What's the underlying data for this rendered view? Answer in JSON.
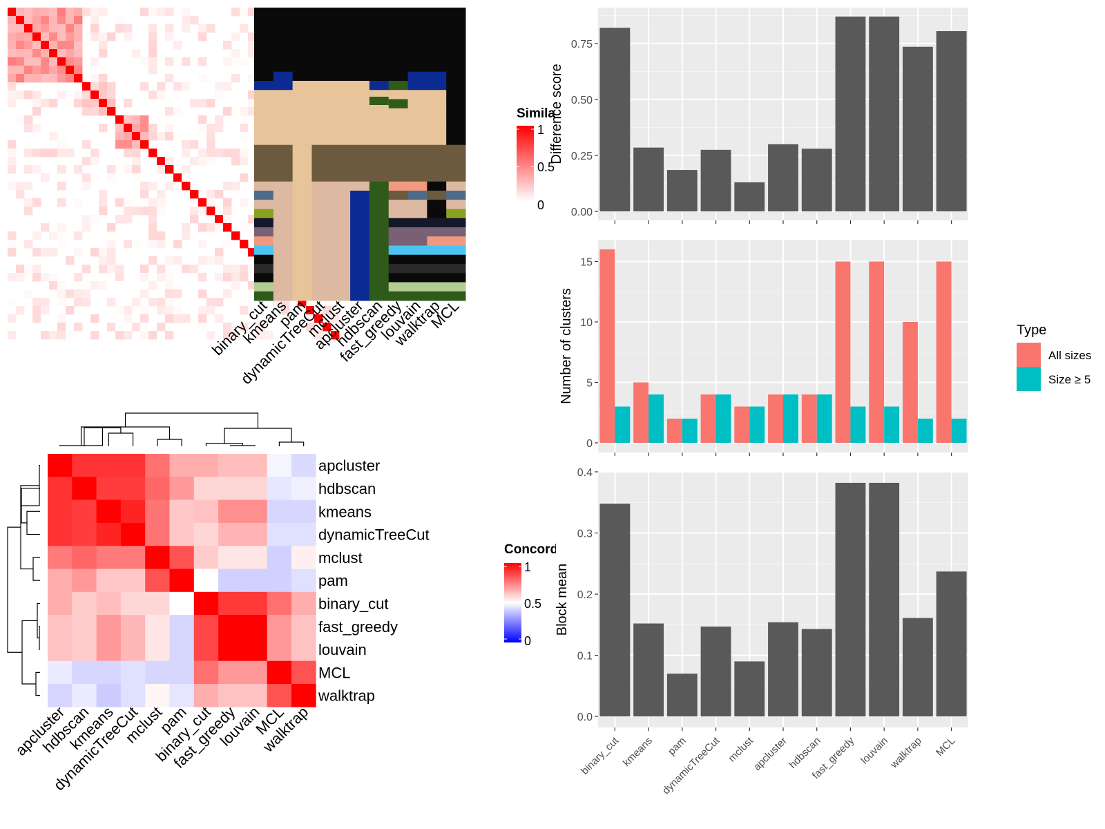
{
  "chart_data": [
    {
      "type": "heatmap",
      "panel": "similarity-matrix",
      "size": 40,
      "blocks": [
        {
          "from": 0,
          "to": 8,
          "value": 0.45
        },
        {
          "from": 9,
          "to": 12,
          "value": 0.25
        },
        {
          "from": 13,
          "to": 16,
          "value": 0.4
        }
      ],
      "diagonal_value": 1
    },
    {
      "type": "heatmap",
      "panel": "cluster-assignment",
      "methods": [
        "binary_cut",
        "kmeans",
        "pam",
        "dynamicTreeCut",
        "mclust",
        "apcluster",
        "hdbscan",
        "fast_greedy",
        "louvain",
        "walktrap",
        "MCL"
      ],
      "rows": 32,
      "colors": [
        "#0a0a0a",
        "#0c2b92",
        "#e8c49a",
        "#6b5a3e",
        "#deb9a1",
        "#4e6b8a",
        "#8aa021",
        "#15172a",
        "#7a6075",
        "#f09a80",
        "#4cc4f2",
        "#2a2a2a",
        "#b3cd95",
        "#2e5b1a"
      ],
      "legend": {
        "title": "Similarity",
        "ticks": [
          "1",
          "0.5",
          "0"
        ],
        "low_color": "#ffffff",
        "high_color": "#ff0000"
      }
    },
    {
      "type": "heatmap",
      "panel": "concordance",
      "labels": [
        "apcluster",
        "hdbscan",
        "kmeans",
        "dynamicTreeCut",
        "mclust",
        "pam",
        "binary_cut",
        "fast_greedy",
        "louvain",
        "MCL",
        "walktrap"
      ],
      "values": [
        [
          1.0,
          0.9,
          0.9,
          0.9,
          0.78,
          0.66,
          0.66,
          0.63,
          0.63,
          0.48,
          0.43
        ],
        [
          0.9,
          1.0,
          0.88,
          0.88,
          0.8,
          0.7,
          0.58,
          0.58,
          0.58,
          0.45,
          0.47
        ],
        [
          0.9,
          0.88,
          1.0,
          0.93,
          0.77,
          0.61,
          0.62,
          0.72,
          0.72,
          0.42,
          0.42
        ],
        [
          0.9,
          0.88,
          0.93,
          1.0,
          0.77,
          0.61,
          0.58,
          0.65,
          0.65,
          0.44,
          0.44
        ],
        [
          0.76,
          0.8,
          0.76,
          0.76,
          1.0,
          0.84,
          0.6,
          0.55,
          0.55,
          0.41,
          0.53
        ],
        [
          0.66,
          0.7,
          0.61,
          0.61,
          0.84,
          1.0,
          0.5,
          0.41,
          0.41,
          0.41,
          0.44
        ],
        [
          0.66,
          0.6,
          0.63,
          0.58,
          0.58,
          0.5,
          1.0,
          0.89,
          0.89,
          0.78,
          0.66
        ],
        [
          0.62,
          0.6,
          0.7,
          0.64,
          0.55,
          0.42,
          0.86,
          1.0,
          1.0,
          0.7,
          0.62
        ],
        [
          0.62,
          0.6,
          0.7,
          0.64,
          0.55,
          0.42,
          0.86,
          1.0,
          1.0,
          0.7,
          0.62
        ],
        [
          0.46,
          0.42,
          0.42,
          0.44,
          0.42,
          0.42,
          0.78,
          0.7,
          0.7,
          1.0,
          0.84
        ],
        [
          0.42,
          0.46,
          0.4,
          0.44,
          0.52,
          0.45,
          0.66,
          0.62,
          0.62,
          0.84,
          1.0
        ]
      ],
      "legend": {
        "title": "Concordance",
        "ticks": [
          "1",
          "0.5",
          "0"
        ],
        "low_color": "#0000ff",
        "mid_color": "#ffffff",
        "high_color": "#ff0000"
      }
    },
    {
      "type": "bar",
      "panel": "difference-score",
      "categories": [
        "binary_cut",
        "kmeans",
        "pam",
        "dynamicTreeCut",
        "mclust",
        "apcluster",
        "hdbscan",
        "fast_greedy",
        "louvain",
        "walktrap",
        "MCL"
      ],
      "values": [
        0.82,
        0.285,
        0.185,
        0.275,
        0.13,
        0.3,
        0.28,
        0.87,
        0.87,
        0.735,
        0.805
      ],
      "ylabel": "Difference score",
      "yticks": [
        0,
        0.25,
        0.5,
        0.75
      ],
      "ytick_labels": [
        "0.00",
        "0.25",
        "0.50",
        "0.75"
      ],
      "ylim": [
        -0.04,
        0.91
      ],
      "bar_color": "#595959"
    },
    {
      "type": "bar",
      "panel": "number-of-clusters",
      "categories": [
        "binary_cut",
        "kmeans",
        "pam",
        "dynamicTreeCut",
        "mclust",
        "apcluster",
        "hdbscan",
        "fast_greedy",
        "louvain",
        "walktrap",
        "MCL"
      ],
      "series": [
        {
          "name": "All sizes",
          "color": "#f8766d",
          "values": [
            16,
            5,
            2,
            4,
            3,
            4,
            4,
            15,
            15,
            10,
            15
          ]
        },
        {
          "name": "Size ≥ 5",
          "color": "#00bfc4",
          "values": [
            3,
            4,
            2,
            4,
            3,
            4,
            4,
            3,
            3,
            2,
            2
          ]
        }
      ],
      "ylabel": "Number of clusters",
      "yticks": [
        0,
        5,
        10,
        15
      ],
      "ytick_labels": [
        "0",
        "5",
        "10",
        "15"
      ],
      "ylim": [
        -0.8,
        16.8
      ],
      "legend": {
        "title": "Type",
        "position": "right"
      }
    },
    {
      "type": "bar",
      "panel": "block-mean",
      "categories": [
        "binary_cut",
        "kmeans",
        "pam",
        "dynamicTreeCut",
        "mclust",
        "apcluster",
        "hdbscan",
        "fast_greedy",
        "louvain",
        "walktrap",
        "MCL"
      ],
      "values": [
        0.348,
        0.152,
        0.07,
        0.147,
        0.09,
        0.154,
        0.143,
        0.382,
        0.382,
        0.161,
        0.237
      ],
      "ylabel": "Block mean",
      "yticks": [
        0,
        0.1,
        0.2,
        0.3,
        0.4
      ],
      "ytick_labels": [
        "0.0",
        "0.1",
        "0.2",
        "0.3",
        "0.4"
      ],
      "ylim": [
        -0.018,
        0.4
      ],
      "bar_color": "#595959"
    }
  ]
}
